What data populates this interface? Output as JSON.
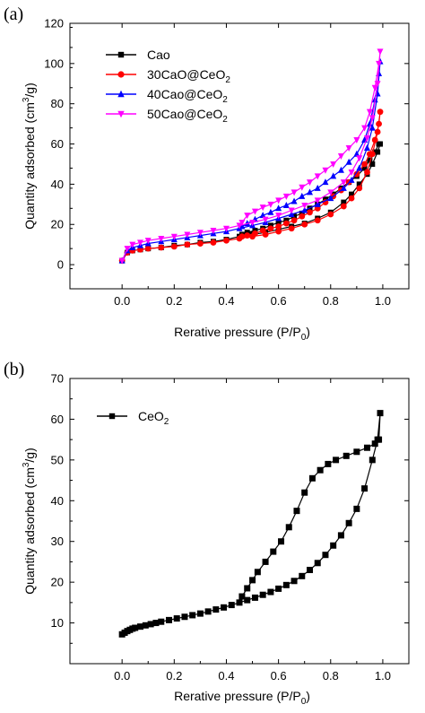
{
  "chart_data": [
    {
      "type": "line",
      "panel_label": "(a)",
      "xlabel": "Rerative pressure (P/P",
      "xlabel_sub": "0",
      "xlabel_end": ")",
      "ylabel": "Quantity adsorbed (cm",
      "ylabel_sup": "3",
      "ylabel_end": "/g)",
      "xlim": [
        -0.2,
        1.1
      ],
      "ylim": [
        -12,
        120
      ],
      "xticks": [
        0.0,
        0.2,
        0.4,
        0.6,
        0.8,
        1.0
      ],
      "yticks": [
        0,
        20,
        40,
        60,
        80,
        100,
        120
      ],
      "xtick_labels": [
        "0.0",
        "0.2",
        "0.4",
        "0.6",
        "0.8",
        "1.0"
      ],
      "ytick_labels": [
        "0",
        "20",
        "40",
        "60",
        "80",
        "100",
        "120"
      ],
      "legend_position": "top-left",
      "series": [
        {
          "name": "Cao",
          "name_sub": "",
          "color": "#000000",
          "marker": "square",
          "x": [
            0.0,
            0.02,
            0.04,
            0.07,
            0.1,
            0.15,
            0.2,
            0.25,
            0.3,
            0.35,
            0.4,
            0.45,
            0.5,
            0.55,
            0.6,
            0.65,
            0.7,
            0.75,
            0.8,
            0.85,
            0.88,
            0.91,
            0.94,
            0.96,
            0.98,
            0.99,
            0.985,
            0.97,
            0.95,
            0.93,
            0.9,
            0.87,
            0.84,
            0.81,
            0.78,
            0.75,
            0.72,
            0.69,
            0.66,
            0.63,
            0.6,
            0.57,
            0.54,
            0.51,
            0.48,
            0.46
          ],
          "y": [
            2,
            6,
            7,
            7.5,
            8,
            8.5,
            9.5,
            10,
            11,
            11.5,
            12.5,
            14,
            15,
            16,
            17.5,
            19,
            20.5,
            23,
            26,
            31,
            35,
            40,
            45,
            50,
            56,
            60,
            60,
            56,
            52,
            48,
            44,
            41,
            38,
            35,
            32.5,
            30,
            28,
            25.5,
            24,
            22,
            21,
            19.5,
            18,
            17,
            16,
            15
          ]
        },
        {
          "name": "30CaO@CeO",
          "name_sub": "2",
          "color": "#ff0000",
          "marker": "circle",
          "x": [
            0.0,
            0.02,
            0.04,
            0.07,
            0.1,
            0.15,
            0.2,
            0.25,
            0.3,
            0.35,
            0.4,
            0.45,
            0.5,
            0.55,
            0.6,
            0.65,
            0.7,
            0.75,
            0.8,
            0.85,
            0.88,
            0.91,
            0.94,
            0.96,
            0.98,
            0.99,
            0.985,
            0.97,
            0.95,
            0.93,
            0.9,
            0.87,
            0.84,
            0.81,
            0.78,
            0.75,
            0.72,
            0.69,
            0.66,
            0.63,
            0.6,
            0.57,
            0.54,
            0.51,
            0.48,
            0.46
          ],
          "y": [
            2,
            6,
            7,
            7.5,
            8,
            8.5,
            9,
            10,
            10.5,
            11,
            12,
            13,
            14,
            15,
            16.5,
            18,
            20,
            22,
            25,
            29,
            33,
            38,
            46,
            55,
            66,
            76,
            70,
            62,
            55,
            50,
            45,
            41,
            37,
            34,
            31,
            28,
            26,
            24,
            22,
            20.5,
            19,
            18,
            17,
            15.5,
            14.5,
            14
          ]
        },
        {
          "name": "40Cao@CeO",
          "name_sub": "2",
          "color": "#0000ff",
          "marker": "triangle",
          "x": [
            0.0,
            0.02,
            0.04,
            0.07,
            0.1,
            0.15,
            0.2,
            0.25,
            0.3,
            0.35,
            0.4,
            0.45,
            0.5,
            0.55,
            0.6,
            0.65,
            0.7,
            0.75,
            0.8,
            0.85,
            0.88,
            0.91,
            0.94,
            0.96,
            0.98,
            0.99,
            0.985,
            0.97,
            0.95,
            0.93,
            0.9,
            0.87,
            0.84,
            0.81,
            0.78,
            0.75,
            0.72,
            0.69,
            0.66,
            0.63,
            0.6,
            0.57,
            0.54,
            0.51,
            0.48,
            0.46
          ],
          "y": [
            2,
            7,
            8.5,
            9.5,
            10.5,
            11.5,
            12.5,
            13.5,
            14.5,
            15.5,
            16.5,
            18,
            19.5,
            21,
            23,
            25,
            27,
            30,
            33,
            38,
            42,
            48,
            58,
            68,
            85,
            101,
            95,
            82,
            70,
            62,
            55,
            51,
            47,
            44,
            41,
            38,
            36,
            34,
            31.5,
            29.5,
            28,
            26,
            24.5,
            22.5,
            20.5,
            19
          ]
        },
        {
          "name": "50Cao@CeO",
          "name_sub": "2",
          "color": "#ff00ff",
          "marker": "triangle-down",
          "x": [
            0.0,
            0.02,
            0.04,
            0.07,
            0.1,
            0.15,
            0.2,
            0.25,
            0.3,
            0.35,
            0.4,
            0.45,
            0.5,
            0.55,
            0.6,
            0.65,
            0.7,
            0.75,
            0.8,
            0.85,
            0.88,
            0.91,
            0.94,
            0.96,
            0.98,
            0.99,
            0.985,
            0.97,
            0.95,
            0.93,
            0.9,
            0.87,
            0.84,
            0.81,
            0.78,
            0.75,
            0.72,
            0.69,
            0.66,
            0.63,
            0.6,
            0.57,
            0.54,
            0.51,
            0.48,
            0.46
          ],
          "y": [
            2,
            8,
            10,
            11,
            12,
            13,
            14,
            15,
            16,
            17,
            18,
            19.5,
            21,
            22.5,
            24.5,
            27,
            29.5,
            32,
            36,
            41,
            46,
            53,
            63,
            73,
            90,
            106,
            100,
            88,
            76,
            68,
            62,
            58,
            54,
            50,
            47,
            44,
            41,
            38.5,
            36,
            34,
            32,
            30,
            28.5,
            26.5,
            24.5,
            21
          ]
        }
      ]
    },
    {
      "type": "line",
      "panel_label": "(b)",
      "xlabel": "Rerative pressure (P/P",
      "xlabel_sub": "0",
      "xlabel_end": ")",
      "ylabel": "Quantity adsorbed (cm",
      "ylabel_sup": "3",
      "ylabel_end": "/g)",
      "xlim": [
        -0.2,
        1.1
      ],
      "ylim": [
        0,
        70
      ],
      "xticks": [
        0.0,
        0.2,
        0.4,
        0.6,
        0.8,
        1.0
      ],
      "yticks": [
        10,
        20,
        30,
        40,
        50,
        60,
        70
      ],
      "xtick_labels": [
        "0.0",
        "0.2",
        "0.4",
        "0.6",
        "0.8",
        "1.0"
      ],
      "ytick_labels": [
        "10",
        "20",
        "30",
        "40",
        "50",
        "60",
        "70"
      ],
      "legend_position": "top-left",
      "series": [
        {
          "name": "CeO",
          "name_sub": "2",
          "color": "#000000",
          "marker": "square",
          "x": [
            0.0,
            0.01,
            0.02,
            0.03,
            0.04,
            0.05,
            0.07,
            0.09,
            0.11,
            0.13,
            0.15,
            0.18,
            0.21,
            0.24,
            0.27,
            0.3,
            0.33,
            0.36,
            0.39,
            0.42,
            0.45,
            0.48,
            0.51,
            0.54,
            0.57,
            0.6,
            0.63,
            0.66,
            0.69,
            0.72,
            0.75,
            0.78,
            0.81,
            0.84,
            0.87,
            0.9,
            0.93,
            0.96,
            0.98,
            0.99,
            0.985,
            0.97,
            0.94,
            0.9,
            0.86,
            0.82,
            0.79,
            0.76,
            0.73,
            0.7,
            0.67,
            0.64,
            0.61,
            0.58,
            0.55,
            0.52,
            0.5,
            0.48,
            0.46
          ],
          "y": [
            7.2,
            7.6,
            8.0,
            8.3,
            8.6,
            8.8,
            9.1,
            9.4,
            9.7,
            10.0,
            10.3,
            10.7,
            11.1,
            11.5,
            11.9,
            12.3,
            12.8,
            13.3,
            13.8,
            14.4,
            15.0,
            15.6,
            16.2,
            16.9,
            17.6,
            18.4,
            19.3,
            20.3,
            21.5,
            23.0,
            24.7,
            26.7,
            29.0,
            31.5,
            34.5,
            38.0,
            43.0,
            50.0,
            55.0,
            61.5,
            55.0,
            54.0,
            53.0,
            52.0,
            51.0,
            50.0,
            49.0,
            47.5,
            45.5,
            42.0,
            37.5,
            33.5,
            30.0,
            27.5,
            25.0,
            22.5,
            20.5,
            18.5,
            16.5
          ]
        }
      ]
    }
  ]
}
